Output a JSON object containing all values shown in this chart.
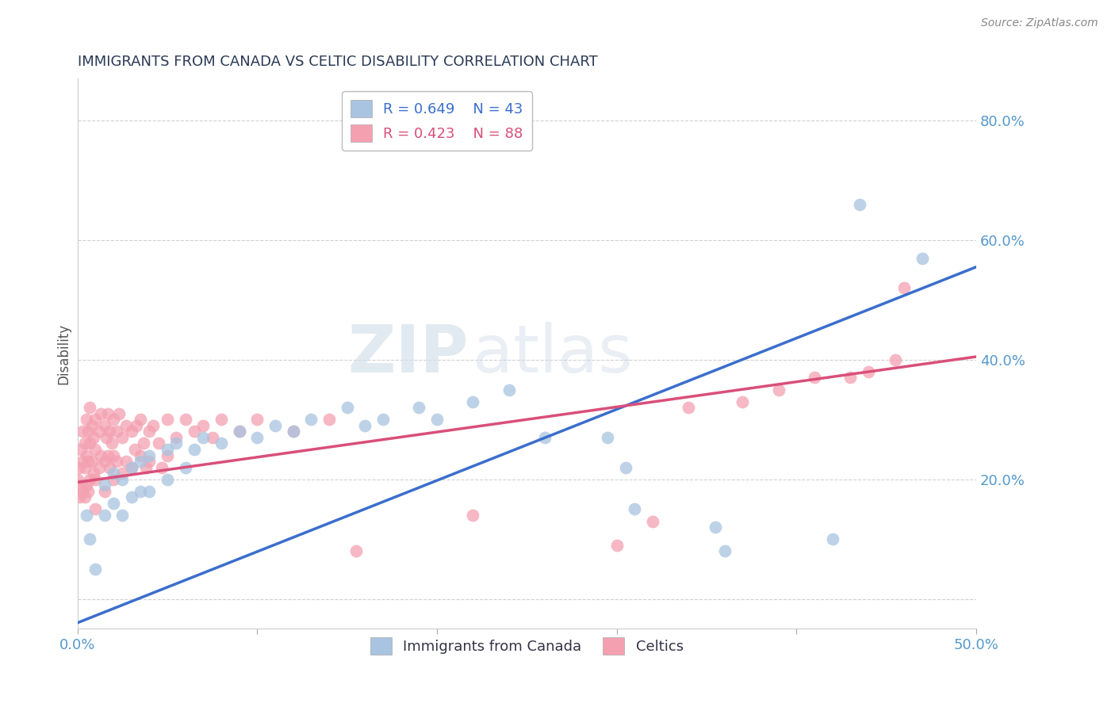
{
  "title": "IMMIGRANTS FROM CANADA VS CELTIC DISABILITY CORRELATION CHART",
  "source": "Source: ZipAtlas.com",
  "ylabel": "Disability",
  "xlim": [
    0.0,
    0.5
  ],
  "ylim": [
    -0.05,
    0.87
  ],
  "yticks": [
    0.0,
    0.2,
    0.4,
    0.6,
    0.8
  ],
  "xticks": [
    0.0,
    0.1,
    0.2,
    0.3,
    0.4,
    0.5
  ],
  "xtick_labels": [
    "0.0%",
    "",
    "",
    "",
    "",
    "50.0%"
  ],
  "ytick_labels": [
    "",
    "20.0%",
    "40.0%",
    "60.0%",
    "80.0%"
  ],
  "blue_R": 0.649,
  "blue_N": 43,
  "pink_R": 0.423,
  "pink_N": 88,
  "blue_color": "#A8C4E0",
  "pink_color": "#F4A0B0",
  "blue_line_color": "#3B6ECC",
  "pink_line_color": "#D94F7A",
  "watermark_zip": "ZIP",
  "watermark_atlas": "atlas",
  "legend_label_blue": "Immigrants from Canada",
  "legend_label_pink": "Celtics",
  "blue_line_x0": 0.0,
  "blue_line_y0": -0.04,
  "blue_line_x1": 0.5,
  "blue_line_y1": 0.555,
  "pink_line_x0": 0.0,
  "pink_line_y0": 0.195,
  "pink_line_x1": 0.5,
  "pink_line_y1": 0.405,
  "blue_scatter_x": [
    0.005,
    0.007,
    0.01,
    0.015,
    0.015,
    0.02,
    0.02,
    0.025,
    0.025,
    0.03,
    0.03,
    0.035,
    0.035,
    0.04,
    0.04,
    0.05,
    0.05,
    0.055,
    0.06,
    0.065,
    0.07,
    0.08,
    0.09,
    0.1,
    0.11,
    0.12,
    0.13,
    0.15,
    0.16,
    0.17,
    0.19,
    0.2,
    0.22,
    0.24,
    0.26,
    0.295,
    0.305,
    0.31,
    0.355,
    0.36,
    0.42,
    0.435,
    0.47
  ],
  "blue_scatter_y": [
    0.14,
    0.1,
    0.05,
    0.19,
    0.14,
    0.21,
    0.16,
    0.2,
    0.14,
    0.22,
    0.17,
    0.23,
    0.18,
    0.24,
    0.18,
    0.25,
    0.2,
    0.26,
    0.22,
    0.25,
    0.27,
    0.26,
    0.28,
    0.27,
    0.29,
    0.28,
    0.3,
    0.32,
    0.29,
    0.3,
    0.32,
    0.3,
    0.33,
    0.35,
    0.27,
    0.27,
    0.22,
    0.15,
    0.12,
    0.08,
    0.1,
    0.66,
    0.57
  ],
  "pink_scatter_x": [
    0.0,
    0.001,
    0.001,
    0.002,
    0.002,
    0.003,
    0.003,
    0.003,
    0.004,
    0.004,
    0.004,
    0.005,
    0.005,
    0.005,
    0.006,
    0.006,
    0.006,
    0.007,
    0.007,
    0.007,
    0.008,
    0.008,
    0.009,
    0.009,
    0.01,
    0.01,
    0.01,
    0.01,
    0.012,
    0.012,
    0.013,
    0.013,
    0.015,
    0.015,
    0.015,
    0.016,
    0.017,
    0.017,
    0.018,
    0.018,
    0.019,
    0.02,
    0.02,
    0.02,
    0.022,
    0.022,
    0.023,
    0.025,
    0.025,
    0.027,
    0.027,
    0.03,
    0.03,
    0.032,
    0.033,
    0.035,
    0.035,
    0.037,
    0.038,
    0.04,
    0.04,
    0.042,
    0.045,
    0.047,
    0.05,
    0.05,
    0.055,
    0.06,
    0.065,
    0.07,
    0.075,
    0.08,
    0.09,
    0.1,
    0.12,
    0.14,
    0.155,
    0.22,
    0.3,
    0.32,
    0.34,
    0.37,
    0.39,
    0.41,
    0.43,
    0.44,
    0.455,
    0.46
  ],
  "pink_scatter_y": [
    0.2,
    0.22,
    0.17,
    0.25,
    0.19,
    0.28,
    0.23,
    0.18,
    0.26,
    0.22,
    0.17,
    0.3,
    0.24,
    0.19,
    0.28,
    0.23,
    0.18,
    0.32,
    0.26,
    0.2,
    0.29,
    0.23,
    0.27,
    0.21,
    0.3,
    0.25,
    0.2,
    0.15,
    0.28,
    0.22,
    0.31,
    0.24,
    0.29,
    0.23,
    0.18,
    0.27,
    0.31,
    0.24,
    0.28,
    0.22,
    0.26,
    0.3,
    0.24,
    0.2,
    0.28,
    0.23,
    0.31,
    0.27,
    0.21,
    0.29,
    0.23,
    0.28,
    0.22,
    0.25,
    0.29,
    0.24,
    0.3,
    0.26,
    0.22,
    0.28,
    0.23,
    0.29,
    0.26,
    0.22,
    0.3,
    0.24,
    0.27,
    0.3,
    0.28,
    0.29,
    0.27,
    0.3,
    0.28,
    0.3,
    0.28,
    0.3,
    0.08,
    0.14,
    0.09,
    0.13,
    0.32,
    0.33,
    0.35,
    0.37,
    0.37,
    0.38,
    0.4,
    0.52
  ],
  "background_color": "#FFFFFF",
  "grid_color": "#CCCCCC",
  "tick_label_color": "#5599CC",
  "title_color": "#2B3A55",
  "source_color": "#888888"
}
